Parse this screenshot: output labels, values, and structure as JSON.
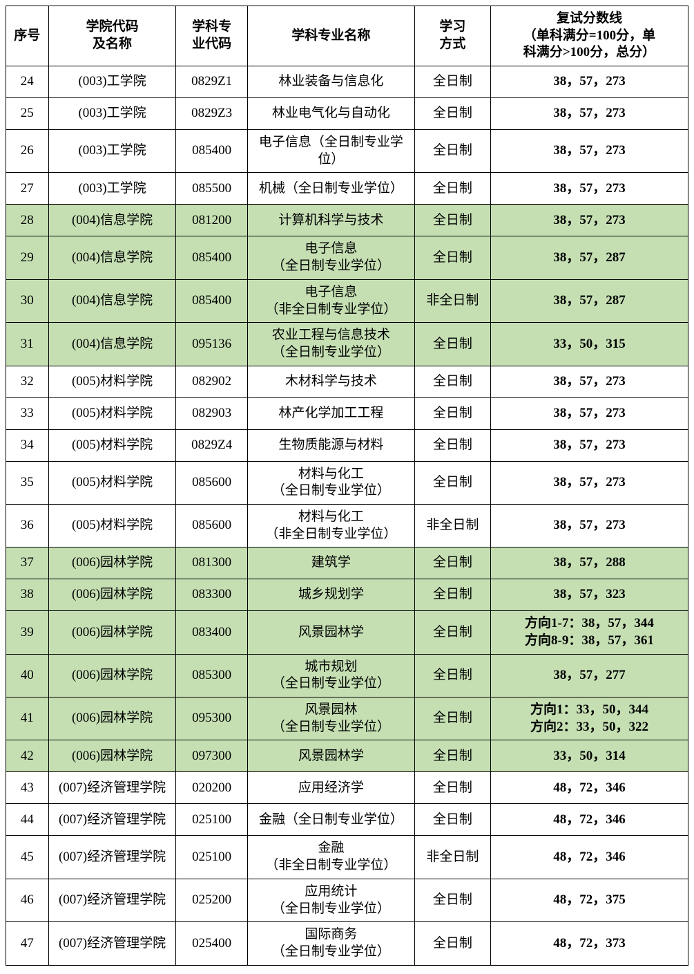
{
  "table": {
    "headers": {
      "seq": "序号",
      "college": "学院代码\n及名称",
      "code": "学科专\n业代码",
      "major": "学科专业名称",
      "study": "学习\n方式",
      "score": "复试分数线\n（单科满分=100分，单\n科满分>100分，总分）"
    },
    "column_widths": {
      "seq": 56,
      "college": 168,
      "code": 94,
      "major": 220,
      "study": 100,
      "score": 260
    },
    "highlight_color": "#c5dfb3",
    "background_color": "#ffffff",
    "border_color": "#000000",
    "font_family": "SimSun",
    "header_fontsize": 19,
    "cell_fontsize": 19,
    "rows": [
      {
        "seq": "24",
        "college": "(003)工学院",
        "code": "0829Z1",
        "major": "林业装备与信息化",
        "study": "全日制",
        "score": "38，57，273",
        "highlight": false
      },
      {
        "seq": "25",
        "college": "(003)工学院",
        "code": "0829Z3",
        "major": "林业电气化与自动化",
        "study": "全日制",
        "score": "38，57，273",
        "highlight": false
      },
      {
        "seq": "26",
        "college": "(003)工学院",
        "code": "085400",
        "major": "电子信息（全日制专业学\n位）",
        "study": "全日制",
        "score": "38，57，273",
        "highlight": false
      },
      {
        "seq": "27",
        "college": "(003)工学院",
        "code": "085500",
        "major": "机械（全日制专业学位）",
        "study": "全日制",
        "score": "38，57，273",
        "highlight": false
      },
      {
        "seq": "28",
        "college": "(004)信息学院",
        "code": "081200",
        "major": "计算机科学与技术",
        "study": "全日制",
        "score": "38，57，273",
        "highlight": true
      },
      {
        "seq": "29",
        "college": "(004)信息学院",
        "code": "085400",
        "major": "电子信息\n（全日制专业学位）",
        "study": "全日制",
        "score": "38，57，287",
        "highlight": true
      },
      {
        "seq": "30",
        "college": "(004)信息学院",
        "code": "085400",
        "major": "电子信息\n（非全日制专业学位）",
        "study": "非全日制",
        "score": "38，57，287",
        "highlight": true
      },
      {
        "seq": "31",
        "college": "(004)信息学院",
        "code": "095136",
        "major": "农业工程与信息技术\n（全日制专业学位）",
        "study": "全日制",
        "score": "33，50，315",
        "highlight": true
      },
      {
        "seq": "32",
        "college": "(005)材料学院",
        "code": "082902",
        "major": "木材科学与技术",
        "study": "全日制",
        "score": "38，57，273",
        "highlight": false
      },
      {
        "seq": "33",
        "college": "(005)材料学院",
        "code": "082903",
        "major": "林产化学加工工程",
        "study": "全日制",
        "score": "38，57，273",
        "highlight": false
      },
      {
        "seq": "34",
        "college": "(005)材料学院",
        "code": "0829Z4",
        "major": "生物质能源与材料",
        "study": "全日制",
        "score": "38，57，273",
        "highlight": false
      },
      {
        "seq": "35",
        "college": "(005)材料学院",
        "code": "085600",
        "major": "材料与化工\n（全日制专业学位）",
        "study": "全日制",
        "score": "38，57，273",
        "highlight": false
      },
      {
        "seq": "36",
        "college": "(005)材料学院",
        "code": "085600",
        "major": "材料与化工\n（非全日制专业学位）",
        "study": "非全日制",
        "score": "38，57，273",
        "highlight": false
      },
      {
        "seq": "37",
        "college": "(006)园林学院",
        "code": "081300",
        "major": "建筑学",
        "study": "全日制",
        "score": "38，57，288",
        "highlight": true
      },
      {
        "seq": "38",
        "college": "(006)园林学院",
        "code": "083300",
        "major": "城乡规划学",
        "study": "全日制",
        "score": "38，57，323",
        "highlight": true
      },
      {
        "seq": "39",
        "college": "(006)园林学院",
        "code": "083400",
        "major": "风景园林学",
        "study": "全日制",
        "score": "方向1-7：38，57，344\n方向8-9：38，57，361",
        "highlight": true
      },
      {
        "seq": "40",
        "college": "(006)园林学院",
        "code": "085300",
        "major": "城市规划\n（全日制专业学位）",
        "study": "全日制",
        "score": "38，57，277",
        "highlight": true
      },
      {
        "seq": "41",
        "college": "(006)园林学院",
        "code": "095300",
        "major": "风景园林\n（全日制专业学位）",
        "study": "全日制",
        "score": "方向1：33，50，344\n方向2：33，50，322",
        "highlight": true
      },
      {
        "seq": "42",
        "college": "(006)园林学院",
        "code": "097300",
        "major": "风景园林学",
        "study": "全日制",
        "score": "33，50，314",
        "highlight": true
      },
      {
        "seq": "43",
        "college": "(007)经济管理学院",
        "code": "020200",
        "major": "应用经济学",
        "study": "全日制",
        "score": "48，72，346",
        "highlight": false
      },
      {
        "seq": "44",
        "college": "(007)经济管理学院",
        "code": "025100",
        "major": "金融（全日制专业学位）",
        "study": "全日制",
        "score": "48，72，346",
        "highlight": false
      },
      {
        "seq": "45",
        "college": "(007)经济管理学院",
        "code": "025100",
        "major": "金融\n（非全日制专业学位）",
        "study": "非全日制",
        "score": "48，72，346",
        "highlight": false
      },
      {
        "seq": "46",
        "college": "(007)经济管理学院",
        "code": "025200",
        "major": "应用统计\n（全日制专业学位）",
        "study": "全日制",
        "score": "48，72，375",
        "highlight": false
      },
      {
        "seq": "47",
        "college": "(007)经济管理学院",
        "code": "025400",
        "major": "国际商务\n（全日制专业学位）",
        "study": "全日制",
        "score": "48，72，373",
        "highlight": false
      }
    ]
  }
}
